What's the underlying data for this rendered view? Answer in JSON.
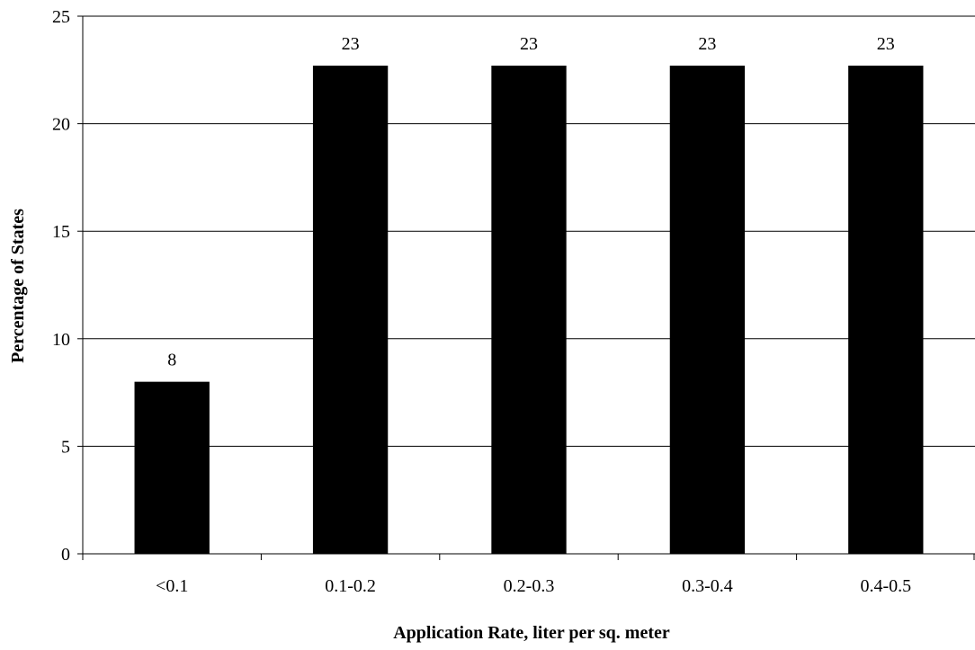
{
  "chart_data": {
    "type": "bar",
    "categories": [
      "<0.1",
      "0.1-0.2",
      "0.2-0.3",
      "0.3-0.4",
      "0.4-0.5"
    ],
    "values": [
      8,
      22.7,
      22.7,
      22.7,
      22.7
    ],
    "data_labels": [
      "8",
      "23",
      "23",
      "23",
      "23"
    ],
    "title": "",
    "xlabel": "Application Rate, liter per sq. meter",
    "ylabel": "Percentage of States",
    "ylim": [
      0,
      25
    ],
    "yticks": [
      0,
      5,
      10,
      15,
      20,
      25
    ],
    "grid": true,
    "bar_color": "#000000"
  }
}
